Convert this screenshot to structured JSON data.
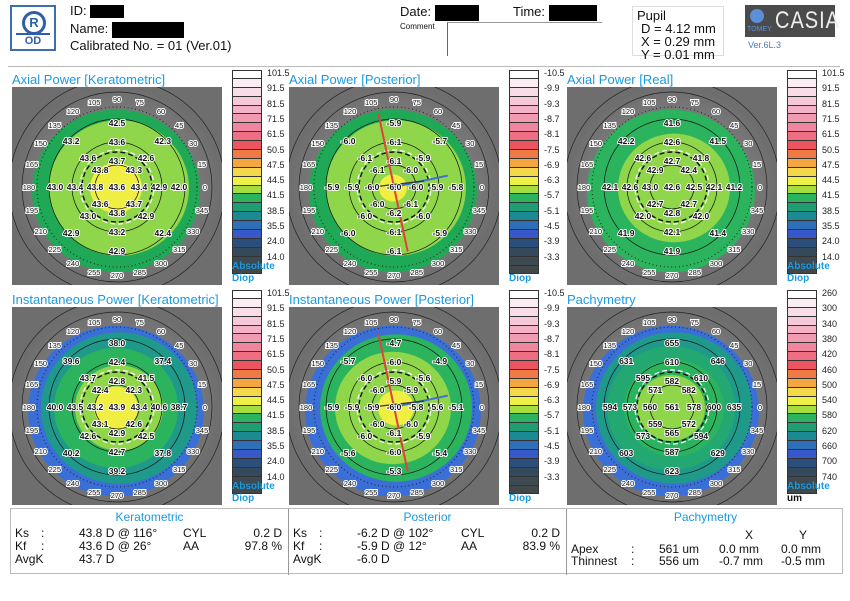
{
  "header": {
    "eye_badge": {
      "letter": "R",
      "label": "OD"
    },
    "id_label": "ID:",
    "name_label": "Name:",
    "calibrated": "Calibrated No. = 01 (Ver.01)",
    "date_label": "Date:",
    "time_label": "Time:",
    "comment_label": "Comment",
    "pupil": {
      "title": "Pupil",
      "d": "D = 4.12 mm",
      "x": "X = 0.29 mm",
      "y": "Y = 0.01 mm"
    },
    "brand": {
      "maker": "TOMEY",
      "product": "CASIA",
      "version": "Ver.6L.3"
    }
  },
  "angle_labels": [
    "0",
    "15",
    "30",
    "45",
    "60",
    "75",
    "90",
    "105",
    "120",
    "135",
    "150",
    "165",
    "180",
    "195",
    "210",
    "225",
    "240",
    "255",
    "270",
    "285",
    "300",
    "315",
    "330",
    "345"
  ],
  "legend_colors": [
    "#ffffff",
    "#fbeef3",
    "#f8dde8",
    "#f6c8d8",
    "#f4b2c6",
    "#f29ab2",
    "#f0869e",
    "#ee6f82",
    "#ec5560",
    "#ef7a45",
    "#f4a640",
    "#f3d84a",
    "#eef046",
    "#a6dd3e",
    "#2bb35e",
    "#1f9e74",
    "#1c8a94",
    "#2f6fb8",
    "#3758c9",
    "#2b4e7a",
    "#34495c",
    "#3d4a52",
    "#424848"
  ],
  "legends": {
    "keratometric": {
      "labels": [
        "101.5",
        "91.5",
        "81.5",
        "71.5",
        "61.5",
        "50.5",
        "47.5",
        "44.5",
        "41.5",
        "38.5",
        "35.5",
        "24.0",
        "14.0"
      ],
      "unit1": "Absolute",
      "unit2": "Diop"
    },
    "posterior": {
      "labels": [
        "-10.5",
        "-9.9",
        "-9.3",
        "-8.7",
        "-8.1",
        "-7.5",
        "-6.9",
        "-6.3",
        "-5.7",
        "-5.1",
        "-4.5",
        "-3.9",
        "-3.3"
      ],
      "unit1": "",
      "unit2": "Diop"
    },
    "real": {
      "labels": [
        "101.5",
        "91.5",
        "81.5",
        "71.5",
        "61.5",
        "50.5",
        "47.5",
        "44.5",
        "41.5",
        "38.5",
        "35.5",
        "24.0",
        "14.0"
      ],
      "unit1": "Absolute",
      "unit2": "Diop"
    },
    "pachymetry": {
      "labels": [
        "260",
        "300",
        "340",
        "380",
        "420",
        "460",
        "500",
        "540",
        "580",
        "620",
        "660",
        "700",
        "740"
      ],
      "unit1": "Absolute",
      "unit2": "um"
    }
  },
  "maps": [
    {
      "title": "Axial Power [Keratometric]",
      "legend": "keratometric",
      "zone_colors": [
        "#1fa855",
        "#8fd64a",
        "#f0ee40"
      ],
      "axes": false,
      "center": "43.6",
      "rings_from_90_clockwise": [
        [
          "43.7",
          "43.3",
          "43.4",
          "43.7",
          "43.8",
          "43.6",
          "43.8",
          "43.8"
        ],
        [
          "43.6",
          "42.6",
          "42.9",
          "42.9",
          "43.2",
          "43.0",
          "43.4",
          "43.6"
        ],
        [
          "42.5",
          "42.3",
          "42.0",
          "42.4",
          "42.9",
          "42.9",
          "43.0",
          "43.2"
        ]
      ]
    },
    {
      "title": "Axial Power [Posterior]",
      "legend": "posterior",
      "zone_colors": [
        "#1fa855",
        "#8fd64a",
        "#f0ee40"
      ],
      "axes": true,
      "center": "-6.0",
      "rings_from_90_clockwise": [
        [
          "-6.1",
          "-6.0",
          "-6.0",
          "-6.1",
          "-6.2",
          "-6.0",
          "-6.0",
          "-6.1"
        ],
        [
          "-6.1",
          "-5.9",
          "-5.9",
          "-6.0",
          "-6.1",
          "-6.0",
          "-5.9",
          "-6.1"
        ],
        [
          "-5.9",
          "-5.7",
          "-5.8",
          "-5.9",
          "-6.1",
          "-6.0",
          "-5.9",
          "-6.0"
        ]
      ]
    },
    {
      "title": "Axial Power [Real]",
      "legend": "real",
      "zone_colors": [
        "#2bb35e",
        "#8fd64a"
      ],
      "axes": false,
      "center": "42.6",
      "rings_from_90_clockwise": [
        [
          "42.7",
          "42.4",
          "42.5",
          "42.7",
          "42.8",
          "42.7",
          "43.0",
          "42.9"
        ],
        [
          "42.6",
          "41.8",
          "42.1",
          "42.0",
          "42.1",
          "42.0",
          "42.6",
          "42.6"
        ],
        [
          "41.6",
          "41.5",
          "41.2",
          "41.4",
          "41.9",
          "41.9",
          "42.1",
          "42.2"
        ]
      ]
    },
    {
      "title": "Instantaneous Power [Keratometric]",
      "legend": "keratometric",
      "zone_colors": [
        "#3a6fd8",
        "#1f9a8a",
        "#2bb35e",
        "#8fd64a",
        "#f0ee40"
      ],
      "axes": false,
      "center": "43.9",
      "rings_from_90_clockwise": [
        [
          "42.8",
          "42.3",
          "43.4",
          "42.6",
          "42.9",
          "43.1",
          "43.2",
          "42.4"
        ],
        [
          "42.4",
          "41.5",
          "40.6",
          "42.5",
          "42.7",
          "42.6",
          "43.5",
          "43.7"
        ],
        [
          "38.0",
          "37.4",
          "38.7",
          "37.8",
          "39.2",
          "40.2",
          "40.0",
          "39.6"
        ]
      ]
    },
    {
      "title": "Instantaneous Power [Posterior]",
      "legend": "posterior",
      "zone_colors": [
        "#3a6fd8",
        "#2bb35e",
        "#8fd64a",
        "#f0ee40"
      ],
      "axes": true,
      "center": "-6.0",
      "rings_from_90_clockwise": [
        [
          "-5.9",
          "-5.9",
          "-5.8",
          "-6.0",
          "-6.1",
          "-6.0",
          "-5.9",
          "-6.0"
        ],
        [
          "-6.0",
          "-5.6",
          "-5.6",
          "-5.9",
          "-6.0",
          "-6.0",
          "-5.9",
          "-6.0"
        ],
        [
          "-4.7",
          "-4.9",
          "-5.1",
          "-5.4",
          "-5.3",
          "-5.6",
          "-5.9",
          "-5.7"
        ]
      ]
    },
    {
      "title": "Pachymetry",
      "legend": "pachymetry",
      "zone_colors": [
        "#3a6fd8",
        "#1f9a8a",
        "#22a870",
        "#2bb35e",
        "#8fd64a"
      ],
      "axes": false,
      "center": "561",
      "rings_from_90_clockwise": [
        [
          "582",
          "582",
          "578",
          "572",
          "565",
          "559",
          "560",
          "571"
        ],
        [
          "610",
          "610",
          "600",
          "594",
          "587",
          "573",
          "573",
          "595"
        ],
        [
          "655",
          "646",
          "635",
          "629",
          "623",
          "603",
          "594",
          "631"
        ]
      ]
    }
  ],
  "summary": {
    "keratometric": {
      "title": "Keratometric",
      "ks_label": "Ks",
      "ks": "43.8 D @ 116°",
      "kf_label": "Kf",
      "kf": "43.6 D @ 26°",
      "avgk_label": "AvgK",
      "avgk": "43.7 D",
      "cyl_label": "CYL",
      "cyl": "0.2 D",
      "aa_label": "AA",
      "aa": "97.8 %"
    },
    "posterior": {
      "title": "Posterior",
      "ks_label": "Ks",
      "ks": "-6.2 D @ 102°",
      "kf_label": "Kf",
      "kf": "-5.9 D @ 12°",
      "avgk_label": "AvgK",
      "avgk": "-6.0 D",
      "cyl_label": "CYL",
      "cyl": "0.2 D",
      "aa_label": "AA",
      "aa": "83.9 %"
    },
    "pachymetry": {
      "title": "Pachymetry",
      "x_header": "X",
      "y_header": "Y",
      "apex": {
        "label": "Apex",
        "value": "561 um",
        "x": "0.0 mm",
        "y": "0.0 mm"
      },
      "thinnest": {
        "label": "Thinnest",
        "value": "556 um",
        "x": "-0.7 mm",
        "y": "-0.5 mm"
      }
    }
  }
}
